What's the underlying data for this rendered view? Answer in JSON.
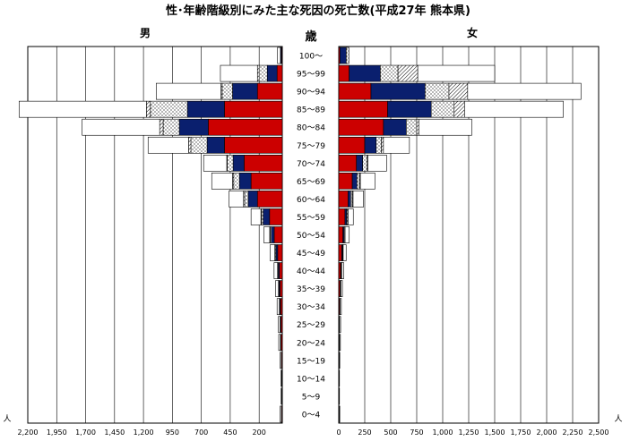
{
  "chart_data": {
    "type": "bar",
    "title": "性･年齢階級別にみた主な死因の死亡数(平成27年 熊本県)",
    "age_axis_label": "歳",
    "male_label": "男",
    "female_label": "女",
    "unit_label": "人",
    "age_groups": [
      "0～4",
      "5～9",
      "10～14",
      "15～19",
      "20～24",
      "25～29",
      "30～34",
      "35～39",
      "40～44",
      "45～49",
      "50～54",
      "55～59",
      "60～64",
      "65～69",
      "70～74",
      "75～79",
      "80～84",
      "85～89",
      "90～94",
      "95～99",
      "100～"
    ],
    "male_ticks": [
      "2,200",
      "1,950",
      "1,700",
      "1,450",
      "1,200",
      "950",
      "700",
      "450",
      "200"
    ],
    "female_ticks": [
      "0",
      "250",
      "500",
      "750",
      "1,000",
      "1,250",
      "1,500",
      "1,750",
      "2,000",
      "2,250",
      "2,500"
    ],
    "male_axis_range": [
      2200,
      0
    ],
    "female_axis_range": [
      0,
      2500
    ],
    "segment_colors": {
      "red": "#CC0000",
      "navy": "#0A1F6E",
      "dots": "#FFFFFF",
      "hatch": "#FFFFFF",
      "other": "#FFFFFF"
    },
    "male_series": [
      {
        "values": [
          5,
          3,
          4,
          6,
          10,
          12,
          15,
          20,
          25,
          40,
          70,
          110,
          215,
          270,
          330,
          500,
          640,
          500,
          215,
          45,
          5
        ]
      },
      {
        "values": [
          2,
          1,
          1,
          2,
          4,
          5,
          6,
          8,
          10,
          15,
          25,
          55,
          80,
          100,
          95,
          150,
          250,
          320,
          215,
          85,
          8
        ]
      },
      {
        "values": [
          1,
          1,
          1,
          1,
          2,
          2,
          3,
          4,
          5,
          8,
          10,
          15,
          30,
          50,
          50,
          140,
          140,
          320,
          90,
          70,
          3
        ]
      },
      {
        "values": [
          0,
          0,
          0,
          0,
          0,
          0,
          1,
          1,
          1,
          2,
          4,
          5,
          10,
          10,
          5,
          20,
          30,
          35,
          10,
          15,
          0
        ]
      },
      {
        "values": [
          10,
          5,
          6,
          10,
          15,
          15,
          20,
          25,
          30,
          40,
          50,
          85,
          125,
          180,
          200,
          350,
          670,
          1100,
          560,
          320,
          25
        ]
      }
    ],
    "female_series": [
      {
        "values": [
          3,
          2,
          2,
          3,
          5,
          5,
          8,
          12,
          18,
          28,
          40,
          60,
          90,
          130,
          170,
          250,
          430,
          470,
          310,
          100,
          12
        ]
      },
      {
        "values": [
          1,
          1,
          1,
          1,
          2,
          2,
          3,
          4,
          5,
          8,
          10,
          15,
          25,
          45,
          60,
          110,
          220,
          420,
          520,
          300,
          60
        ]
      },
      {
        "values": [
          1,
          1,
          1,
          1,
          1,
          1,
          2,
          3,
          4,
          5,
          8,
          10,
          15,
          25,
          40,
          50,
          100,
          220,
          230,
          170,
          25
        ]
      },
      {
        "values": [
          0,
          0,
          0,
          0,
          0,
          0,
          0,
          1,
          1,
          2,
          3,
          5,
          8,
          8,
          10,
          20,
          20,
          100,
          180,
          190,
          0
        ]
      },
      {
        "values": [
          5,
          3,
          3,
          5,
          8,
          10,
          12,
          15,
          20,
          28,
          40,
          50,
          100,
          140,
          180,
          250,
          510,
          950,
          1090,
          740,
          0
        ]
      }
    ]
  }
}
